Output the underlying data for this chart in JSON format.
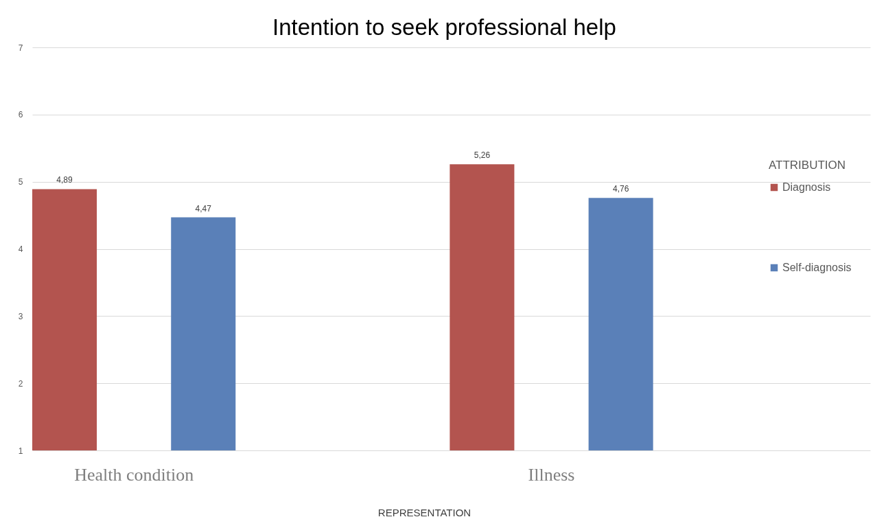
{
  "chart_data": {
    "type": "bar",
    "title": "Intention to seek professional help",
    "xlabel": "REPRESENTATION",
    "legend_title": "ATTRIBUTION",
    "categories": [
      "Health condition",
      "Illness"
    ],
    "series": [
      {
        "name": "Diagnosis",
        "color": "#b3544f",
        "values": [
          4.89,
          5.26
        ],
        "value_labels": [
          "4,89",
          "5,26"
        ]
      },
      {
        "name": "Self-diagnosis",
        "color": "#5a80b8",
        "values": [
          4.47,
          4.76
        ],
        "value_labels": [
          "4,47",
          "4,76"
        ]
      }
    ],
    "ylim": [
      1,
      7
    ],
    "yticks": [
      1,
      2,
      3,
      4,
      5,
      6,
      7
    ],
    "grid": "y",
    "legend": "right"
  }
}
